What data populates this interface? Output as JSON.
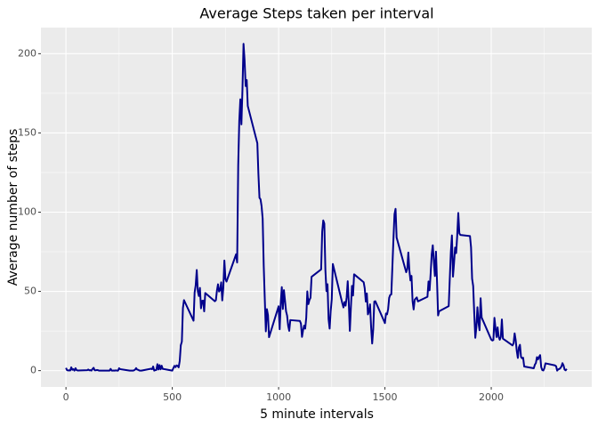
{
  "chart_data": {
    "type": "line",
    "title": "Average Steps taken per interval",
    "x_label": "5 minute intervals",
    "y_label": "Average number of steps",
    "color": "#00008b",
    "x": [
      0,
      5,
      10,
      15,
      20,
      25,
      30,
      35,
      40,
      45,
      50,
      55,
      100,
      105,
      110,
      115,
      120,
      125,
      130,
      135,
      140,
      145,
      150,
      155,
      200,
      205,
      210,
      215,
      220,
      225,
      230,
      235,
      240,
      245,
      250,
      255,
      300,
      305,
      310,
      315,
      320,
      325,
      330,
      335,
      340,
      345,
      350,
      355,
      400,
      405,
      410,
      415,
      420,
      425,
      430,
      435,
      440,
      445,
      450,
      455,
      500,
      505,
      510,
      515,
      520,
      525,
      530,
      535,
      540,
      545,
      550,
      555,
      600,
      605,
      610,
      615,
      620,
      625,
      630,
      635,
      640,
      645,
      650,
      655,
      700,
      705,
      710,
      715,
      720,
      725,
      730,
      735,
      740,
      745,
      750,
      755,
      800,
      805,
      810,
      815,
      820,
      825,
      830,
      835,
      840,
      845,
      850,
      855,
      900,
      905,
      910,
      915,
      920,
      925,
      930,
      935,
      940,
      945,
      950,
      955,
      1000,
      1005,
      1010,
      1015,
      1020,
      1025,
      1030,
      1035,
      1040,
      1045,
      1050,
      1055,
      1100,
      1105,
      1110,
      1115,
      1120,
      1125,
      1130,
      1135,
      1140,
      1145,
      1150,
      1155,
      1200,
      1205,
      1210,
      1215,
      1220,
      1225,
      1230,
      1235,
      1240,
      1245,
      1250,
      1255,
      1300,
      1305,
      1310,
      1315,
      1320,
      1325,
      1330,
      1335,
      1340,
      1345,
      1350,
      1355,
      1400,
      1405,
      1410,
      1415,
      1420,
      1425,
      1430,
      1435,
      1440,
      1445,
      1450,
      1455,
      1500,
      1505,
      1510,
      1515,
      1520,
      1525,
      1530,
      1535,
      1540,
      1545,
      1550,
      1555,
      1600,
      1605,
      1610,
      1615,
      1620,
      1625,
      1630,
      1635,
      1640,
      1645,
      1650,
      1655,
      1700,
      1705,
      1710,
      1715,
      1720,
      1725,
      1730,
      1735,
      1740,
      1745,
      1750,
      1755,
      1800,
      1805,
      1810,
      1815,
      1820,
      1825,
      1830,
      1835,
      1840,
      1845,
      1850,
      1855,
      1900,
      1905,
      1910,
      1915,
      1920,
      1925,
      1930,
      1935,
      1940,
      1945,
      1950,
      1955,
      2000,
      2005,
      2010,
      2015,
      2020,
      2025,
      2030,
      2035,
      2040,
      2045,
      2050,
      2055,
      2100,
      2105,
      2110,
      2115,
      2120,
      2125,
      2130,
      2135,
      2140,
      2145,
      2150,
      2155,
      2200,
      2205,
      2210,
      2215,
      2220,
      2225,
      2230,
      2235,
      2240,
      2245,
      2250,
      2255,
      2300,
      2305,
      2310,
      2315,
      2320,
      2325,
      2330,
      2335,
      2340,
      2345,
      2350,
      2355
    ],
    "values": [
      1.7,
      0.3,
      0.1,
      0.2,
      0.1,
      2.1,
      0.5,
      0.9,
      0,
      1.5,
      0.3,
      0.1,
      0.3,
      0.7,
      0.2,
      0.3,
      0,
      1.1,
      1.8,
      0.2,
      0.2,
      0.4,
      0.3,
      0,
      0,
      0,
      1.1,
      0,
      0,
      0.1,
      0,
      0.2,
      0,
      0,
      1.5,
      0.9,
      0,
      0,
      0,
      0,
      0.2,
      0.6,
      1.6,
      0.6,
      0.5,
      0.1,
      0,
      0,
      1.2,
      0.9,
      2.6,
      0,
      0.3,
      0.4,
      4.1,
      0.7,
      3.5,
      0.8,
      3.1,
      1.1,
      0,
      1.6,
      3,
      2.2,
      3.3,
      3,
      2.1,
      6.1,
      16,
      18.3,
      39.5,
      44.5,
      31.5,
      49.3,
      53.8,
      63.5,
      50,
      47.1,
      52.2,
      39.3,
      44,
      44.2,
      37.4,
      49,
      43.8,
      44.4,
      50.5,
      54.5,
      49.9,
      50.9,
      55.7,
      44.3,
      52.3,
      69.5,
      57.8,
      56.2,
      73.4,
      68.2,
      129.4,
      157.5,
      171.2,
      155.4,
      177.3,
      206.2,
      195.9,
      179.6,
      183.4,
      167,
      143.5,
      124,
      109.1,
      108.1,
      103.7,
      95.9,
      66.2,
      45.2,
      24.8,
      38.8,
      35,
      21.1,
      40.6,
      26.1,
      42.4,
      52.7,
      38.9,
      50.8,
      44.3,
      37.4,
      34.7,
      28.3,
      25.1,
      31.9,
      31.4,
      29.7,
      21.3,
      25.5,
      28.4,
      26.5,
      33.4,
      50,
      42,
      44.6,
      46,
      59.2,
      63.9,
      87.7,
      94.8,
      92.8,
      63.4,
      50.2,
      54.5,
      32.4,
      26.5,
      37.7,
      45.1,
      67.3,
      42.3,
      39.9,
      43.3,
      40.98,
      46.2,
      56.4,
      42.8,
      25.1,
      40,
      53.5,
      47.4,
      60.8,
      55.8,
      51.96,
      43.6,
      48.7,
      35.5,
      37.5,
      41.8,
      27.5,
      17.1,
      26.1,
      43.6,
      43.8,
      30,
      36.1,
      35.5,
      38.8,
      45.96,
      47.8,
      48.1,
      65.3,
      82.9,
      98.7,
      102.1,
      83.96,
      62.1,
      64.1,
      74.5,
      63.2,
      56.9,
      59.8,
      43.9,
      38.6,
      44.7,
      45.5,
      46.2,
      43.7,
      46.6,
      56.3,
      50.7,
      61.2,
      73.4,
      79.1,
      68.9,
      59.7,
      75.1,
      56.5,
      34.8,
      37.5,
      40.7,
      58,
      74.7,
      85.3,
      59.3,
      67.8,
      77.7,
      74.2,
      85.3,
      99.5,
      86.6,
      85.6,
      84.9,
      77.8,
      58,
      53.4,
      36.3,
      20.7,
      27.4,
      40,
      30.2,
      25.5,
      45.7,
      33.5,
      19.6,
      19,
      19.3,
      33.3,
      26.8,
      21.2,
      27.3,
      21.3,
      19.5,
      21.3,
      32.3,
      20.2,
      15.9,
      17.2,
      23.5,
      19.2,
      12.5,
      8,
      14.7,
      16.3,
      8.7,
      7.8,
      8.1,
      2.6,
      1.5,
      3.7,
      4.8,
      8.5,
      7.1,
      8.7,
      9.8,
      2.2,
      0.3,
      0.1,
      1.6,
      4.6,
      3.3,
      2.8,
      0,
      0.8,
      1,
      1.6,
      2.6,
      4.7,
      3.3,
      0.6,
      0.2,
      1.1
    ],
    "xlim": [
      -117.75,
      2472.75
    ],
    "ylim": [
      -10.31,
      216.48
    ],
    "xticks": [
      0,
      500,
      1000,
      1500,
      2000
    ],
    "yticks": [
      0,
      50,
      100,
      150,
      200
    ],
    "x_minor_ticks": [
      250,
      750,
      1250,
      1750,
      2250
    ],
    "y_minor_ticks": [
      25,
      75,
      125,
      175
    ],
    "grid": true
  }
}
